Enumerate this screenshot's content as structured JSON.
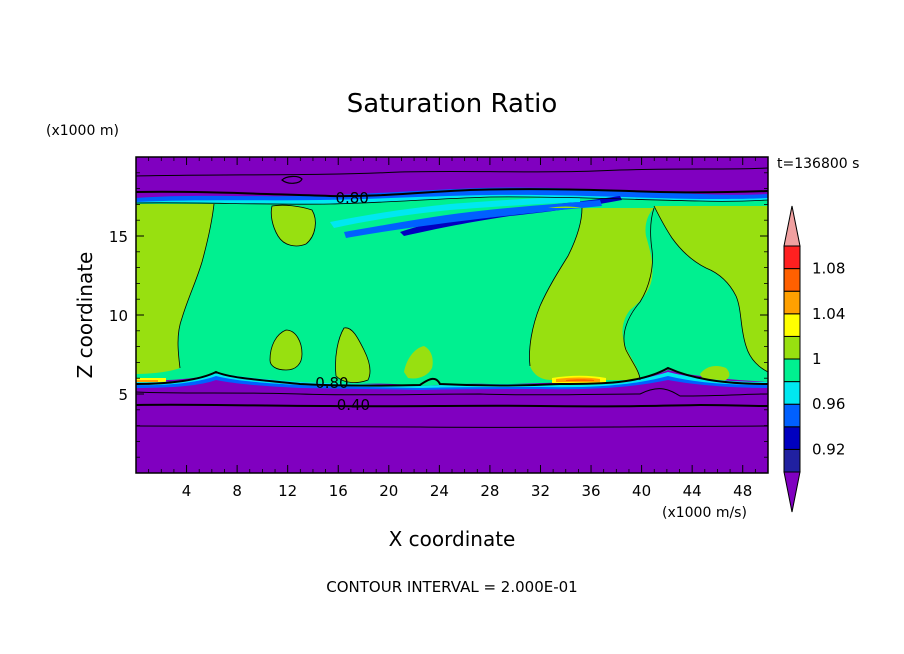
{
  "chart_data": {
    "type": "heatmap",
    "title": "Saturation Ratio",
    "xlabel": "X coordinate",
    "ylabel": "Z coordinate",
    "x_unit_label": "(x1000 m/s)",
    "y_unit_label": "(x1000 m)",
    "time_label": "t=136800 s",
    "footer": "CONTOUR INTERVAL = 2.000E-01",
    "xlim": [
      0,
      50
    ],
    "ylim": [
      0,
      20
    ],
    "x_ticks": [
      4,
      8,
      12,
      16,
      20,
      24,
      28,
      32,
      36,
      40,
      44,
      48
    ],
    "x_tick_labels": [
      "4",
      "8",
      "12",
      "16",
      "20",
      "24",
      "28",
      "32",
      "36",
      "40",
      "44",
      "48"
    ],
    "y_ticks": [
      5,
      10,
      15
    ],
    "y_tick_labels": [
      "5",
      "10",
      "15"
    ],
    "contour_labels": [
      {
        "text": "0.80",
        "x": 17.1,
        "z": 17.4
      },
      {
        "text": "0.80",
        "x": 15.5,
        "z": 5.7
      },
      {
        "text": "0.40",
        "x": 17.2,
        "z": 4.3
      }
    ],
    "colorbar": {
      "levels": [
        0.9,
        0.92,
        0.94,
        0.96,
        0.98,
        1.0,
        1.02,
        1.04,
        1.06,
        1.08,
        1.1
      ],
      "labels": [
        "0.92",
        "0.96",
        "1",
        "1.04",
        "1.08"
      ],
      "colors": [
        "#8000c0",
        "#2020a0",
        "#0000c0",
        "#0060ff",
        "#00e8f0",
        "#00f090",
        "#98e010",
        "#ffff00",
        "#ffa000",
        "#ff6000",
        "#ff2020",
        "#f0a0a0"
      ]
    },
    "colors": {
      "dry": "#8000c0",
      "band_dark_blue": "#0000c0",
      "band_blue": "#0060ff",
      "band_cyan": "#00e8f0",
      "saturated": "#00f090",
      "supersat": "#98e010",
      "yellow": "#ffff00",
      "orange": "#ffa000",
      "red": "#ff2020"
    }
  }
}
